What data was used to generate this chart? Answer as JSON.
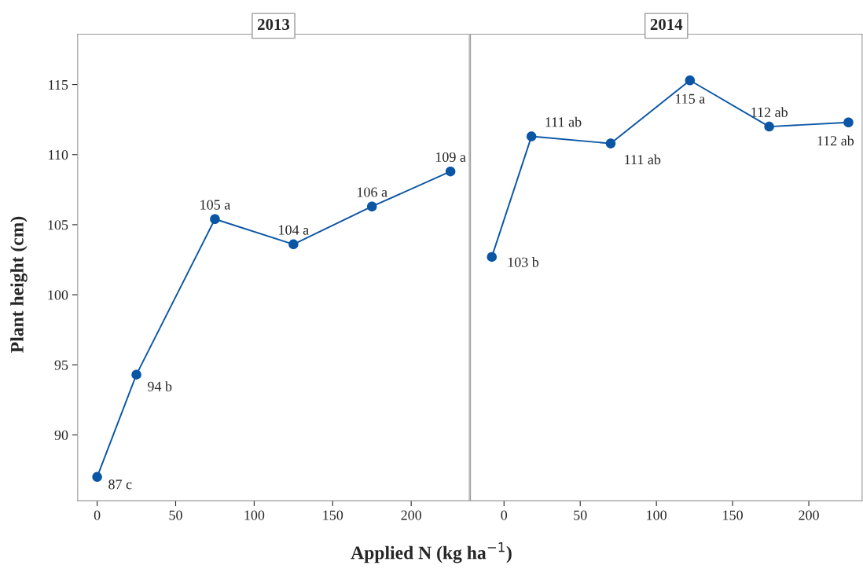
{
  "chart_data": [
    {
      "type": "line",
      "title": "2013",
      "xlabel": "Applied N (kg ha$^{−1}$)",
      "ylabel": "Plant height (cm)",
      "x": [
        0,
        25,
        75,
        125,
        175,
        225
      ],
      "xlim": [
        -12.4,
        237
      ],
      "xticks": [
        0,
        50,
        100,
        150,
        200
      ],
      "ylim": [
        85.3,
        118.6
      ],
      "yticks": [
        90,
        95,
        100,
        105,
        110,
        115
      ],
      "marker": "circle",
      "grid": false,
      "series": [
        {
          "color": "#0a56a5",
          "values": [
            87.0,
            94.3,
            105.4,
            103.6,
            106.3,
            108.8
          ],
          "value_labels": [
            "87 c",
            "94 b",
            "105 a",
            "104 a",
            "106 a",
            "109 a"
          ]
        }
      ]
    },
    {
      "type": "line",
      "title": "2014",
      "x": [
        -8,
        18,
        70,
        122,
        174,
        226
      ],
      "xlim": [
        -22,
        235
      ],
      "xticks": [
        0,
        50,
        100,
        150,
        200
      ],
      "ylim": [
        85.3,
        118.6
      ],
      "yticks": [
        90,
        95,
        100,
        105,
        110,
        115
      ],
      "tick_labels": "x",
      "marker": "circle",
      "grid": false,
      "series": [
        {
          "color": "#0a56a5",
          "values": [
            102.7,
            111.3,
            110.8,
            115.3,
            112.0,
            112.3
          ],
          "value_labels": [
            "103 b",
            "111 ab",
            "111 ab",
            "115 a",
            "112 ab",
            "112 ab"
          ]
        }
      ]
    }
  ]
}
